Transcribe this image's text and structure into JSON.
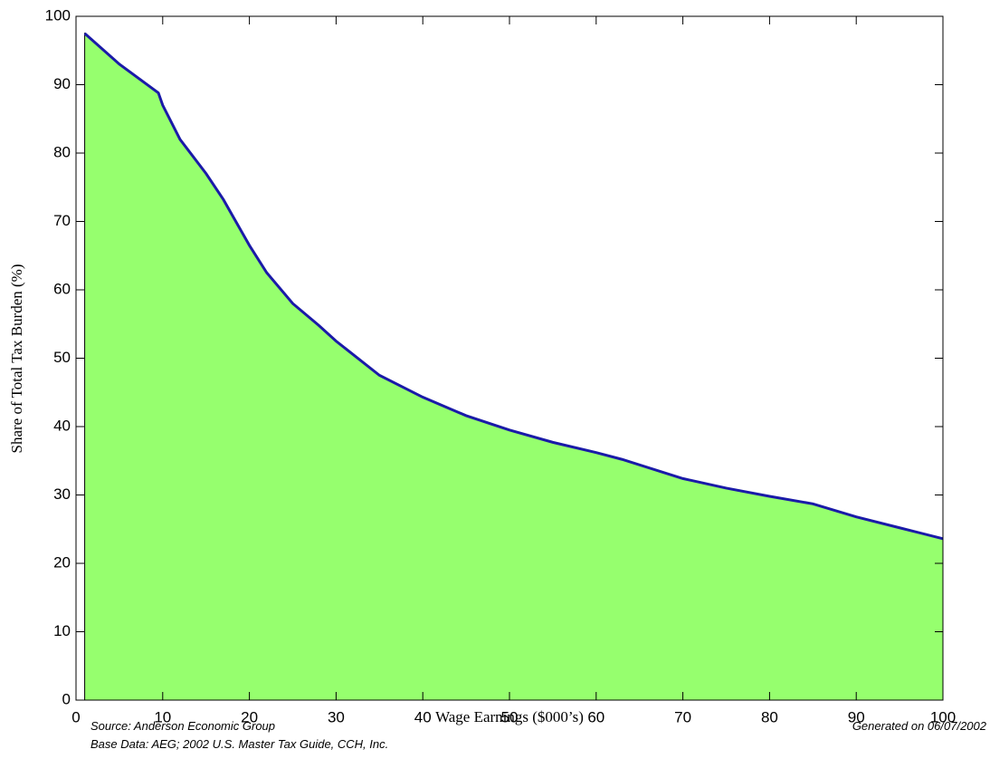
{
  "chart_data": {
    "type": "area",
    "x_label": "Wage Earnings ($000’s)",
    "y_label": "Share of Total Tax Burden (%)",
    "notes": [
      "Source: Anderson Economic Group",
      "Base Data: AEG; 2002 U.S. Master Tax Guide, CCH, Inc."
    ],
    "generated": "Generated on 06/07/2002",
    "x": [
      1,
      5,
      9.5,
      10,
      12,
      15,
      17,
      20,
      22,
      25,
      28,
      30,
      35,
      40,
      45,
      50,
      55,
      60,
      63,
      70,
      75,
      80,
      85,
      90,
      95,
      100
    ],
    "series": [
      {
        "color": "#1a1aa8",
        "fill": "#96ff6e",
        "values": [
          97.5,
          93,
          88.8,
          87,
          82,
          77,
          73.2,
          66.5,
          62.5,
          58,
          54.8,
          52.5,
          47.5,
          44.3,
          41.6,
          39.5,
          37.7,
          36.2,
          35.2,
          32.4,
          31,
          29.8,
          28.7,
          26.8,
          25.2,
          23.6
        ]
      }
    ],
    "xlim": [
      0,
      100
    ],
    "ylim": [
      0,
      100
    ],
    "xticks": [
      0,
      10,
      20,
      30,
      40,
      50,
      60,
      70,
      80,
      90,
      100
    ],
    "yticks": [
      0,
      10,
      20,
      30,
      40,
      50,
      60,
      70,
      80,
      90,
      100
    ]
  }
}
